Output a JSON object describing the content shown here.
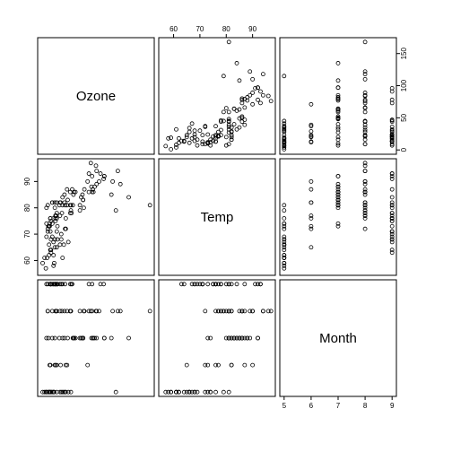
{
  "chart_data": {
    "type": "scatter",
    "plot_kind": "pairs scatterplot matrix",
    "variables": [
      "Ozone",
      "Temp",
      "Month"
    ],
    "axes": {
      "Ozone": {
        "range": [
          0,
          168
        ],
        "ticks": [
          0,
          50,
          100,
          150
        ]
      },
      "Temp": {
        "range": [
          56,
          97
        ],
        "ticks": [
          60,
          70,
          80,
          90
        ]
      },
      "Month": {
        "range": [
          5,
          9
        ],
        "ticks": [
          5,
          6,
          7,
          8,
          9
        ]
      }
    },
    "axis_placement": {
      "Ozone": "right",
      "Temp": [
        "top",
        "left"
      ],
      "Month": "bottom"
    },
    "point_style": "open circle",
    "grid": false,
    "observations": [
      {
        "Ozone": 41,
        "Temp": 67,
        "Month": 5
      },
      {
        "Ozone": 36,
        "Temp": 72,
        "Month": 5
      },
      {
        "Ozone": 12,
        "Temp": 74,
        "Month": 5
      },
      {
        "Ozone": 18,
        "Temp": 62,
        "Month": 5
      },
      {
        "Ozone": 28,
        "Temp": 66,
        "Month": 5
      },
      {
        "Ozone": 23,
        "Temp": 65,
        "Month": 5
      },
      {
        "Ozone": 19,
        "Temp": 59,
        "Month": 5
      },
      {
        "Ozone": 8,
        "Temp": 61,
        "Month": 5
      },
      {
        "Ozone": 7,
        "Temp": 74,
        "Month": 5
      },
      {
        "Ozone": 16,
        "Temp": 69,
        "Month": 5
      },
      {
        "Ozone": 11,
        "Temp": 66,
        "Month": 5
      },
      {
        "Ozone": 14,
        "Temp": 68,
        "Month": 5
      },
      {
        "Ozone": 18,
        "Temp": 58,
        "Month": 5
      },
      {
        "Ozone": 14,
        "Temp": 64,
        "Month": 5
      },
      {
        "Ozone": 34,
        "Temp": 66,
        "Month": 5
      },
      {
        "Ozone": 6,
        "Temp": 57,
        "Month": 5
      },
      {
        "Ozone": 30,
        "Temp": 68,
        "Month": 5
      },
      {
        "Ozone": 11,
        "Temp": 62,
        "Month": 5
      },
      {
        "Ozone": 1,
        "Temp": 59,
        "Month": 5
      },
      {
        "Ozone": 11,
        "Temp": 73,
        "Month": 5
      },
      {
        "Ozone": 4,
        "Temp": 61,
        "Month": 5
      },
      {
        "Ozone": 32,
        "Temp": 61,
        "Month": 5
      },
      {
        "Ozone": 45,
        "Temp": 81,
        "Month": 5
      },
      {
        "Ozone": 115,
        "Temp": 79,
        "Month": 5
      },
      {
        "Ozone": 37,
        "Temp": 76,
        "Month": 5
      },
      {
        "Ozone": 29,
        "Temp": 82,
        "Month": 6
      },
      {
        "Ozone": 71,
        "Temp": 90,
        "Month": 6
      },
      {
        "Ozone": 39,
        "Temp": 87,
        "Month": 6
      },
      {
        "Ozone": 23,
        "Temp": 82,
        "Month": 6
      },
      {
        "Ozone": 21,
        "Temp": 77,
        "Month": 6
      },
      {
        "Ozone": 37,
        "Temp": 72,
        "Month": 6
      },
      {
        "Ozone": 20,
        "Temp": 65,
        "Month": 6
      },
      {
        "Ozone": 12,
        "Temp": 73,
        "Month": 6
      },
      {
        "Ozone": 13,
        "Temp": 76,
        "Month": 6
      },
      {
        "Ozone": 135,
        "Temp": 84,
        "Month": 7
      },
      {
        "Ozone": 49,
        "Temp": 85,
        "Month": 7
      },
      {
        "Ozone": 32,
        "Temp": 81,
        "Month": 7
      },
      {
        "Ozone": 64,
        "Temp": 83,
        "Month": 7
      },
      {
        "Ozone": 40,
        "Temp": 83,
        "Month": 7
      },
      {
        "Ozone": 77,
        "Temp": 88,
        "Month": 7
      },
      {
        "Ozone": 97,
        "Temp": 92,
        "Month": 7
      },
      {
        "Ozone": 97,
        "Temp": 92,
        "Month": 7
      },
      {
        "Ozone": 85,
        "Temp": 89,
        "Month": 7
      },
      {
        "Ozone": 10,
        "Temp": 73,
        "Month": 7
      },
      {
        "Ozone": 27,
        "Temp": 81,
        "Month": 7
      },
      {
        "Ozone": 7,
        "Temp": 80,
        "Month": 7
      },
      {
        "Ozone": 48,
        "Temp": 81,
        "Month": 7
      },
      {
        "Ozone": 35,
        "Temp": 82,
        "Month": 7
      },
      {
        "Ozone": 61,
        "Temp": 84,
        "Month": 7
      },
      {
        "Ozone": 79,
        "Temp": 87,
        "Month": 7
      },
      {
        "Ozone": 63,
        "Temp": 85,
        "Month": 7
      },
      {
        "Ozone": 16,
        "Temp": 74,
        "Month": 7
      },
      {
        "Ozone": 80,
        "Temp": 86,
        "Month": 7
      },
      {
        "Ozone": 108,
        "Temp": 85,
        "Month": 7
      },
      {
        "Ozone": 20,
        "Temp": 82,
        "Month": 7
      },
      {
        "Ozone": 52,
        "Temp": 86,
        "Month": 7
      },
      {
        "Ozone": 82,
        "Temp": 88,
        "Month": 7
      },
      {
        "Ozone": 50,
        "Temp": 86,
        "Month": 7
      },
      {
        "Ozone": 64,
        "Temp": 83,
        "Month": 7
      },
      {
        "Ozone": 59,
        "Temp": 81,
        "Month": 7
      },
      {
        "Ozone": 39,
        "Temp": 81,
        "Month": 8
      },
      {
        "Ozone": 9,
        "Temp": 81,
        "Month": 8
      },
      {
        "Ozone": 16,
        "Temp": 82,
        "Month": 8
      },
      {
        "Ozone": 78,
        "Temp": 86,
        "Month": 8
      },
      {
        "Ozone": 35,
        "Temp": 85,
        "Month": 8
      },
      {
        "Ozone": 66,
        "Temp": 87,
        "Month": 8
      },
      {
        "Ozone": 122,
        "Temp": 89,
        "Month": 8
      },
      {
        "Ozone": 89,
        "Temp": 90,
        "Month": 8
      },
      {
        "Ozone": 110,
        "Temp": 90,
        "Month": 8
      },
      {
        "Ozone": 44,
        "Temp": 86,
        "Month": 8
      },
      {
        "Ozone": 28,
        "Temp": 82,
        "Month": 8
      },
      {
        "Ozone": 65,
        "Temp": 80,
        "Month": 8
      },
      {
        "Ozone": 22,
        "Temp": 77,
        "Month": 8
      },
      {
        "Ozone": 59,
        "Temp": 79,
        "Month": 8
      },
      {
        "Ozone": 23,
        "Temp": 76,
        "Month": 8
      },
      {
        "Ozone": 31,
        "Temp": 78,
        "Month": 8
      },
      {
        "Ozone": 44,
        "Temp": 78,
        "Month": 8
      },
      {
        "Ozone": 21,
        "Temp": 77,
        "Month": 8
      },
      {
        "Ozone": 9,
        "Temp": 72,
        "Month": 8
      },
      {
        "Ozone": 45,
        "Temp": 79,
        "Month": 8
      },
      {
        "Ozone": 168,
        "Temp": 81,
        "Month": 8
      },
      {
        "Ozone": 73,
        "Temp": 86,
        "Month": 8
      },
      {
        "Ozone": 76,
        "Temp": 97,
        "Month": 8
      },
      {
        "Ozone": 118,
        "Temp": 94,
        "Month": 8
      },
      {
        "Ozone": 84,
        "Temp": 96,
        "Month": 8
      },
      {
        "Ozone": 85,
        "Temp": 94,
        "Month": 8
      },
      {
        "Ozone": 96,
        "Temp": 91,
        "Month": 9
      },
      {
        "Ozone": 78,
        "Temp": 92,
        "Month": 9
      },
      {
        "Ozone": 73,
        "Temp": 93,
        "Month": 9
      },
      {
        "Ozone": 91,
        "Temp": 93,
        "Month": 9
      },
      {
        "Ozone": 47,
        "Temp": 87,
        "Month": 9
      },
      {
        "Ozone": 32,
        "Temp": 84,
        "Month": 9
      },
      {
        "Ozone": 20,
        "Temp": 80,
        "Month": 9
      },
      {
        "Ozone": 23,
        "Temp": 78,
        "Month": 9
      },
      {
        "Ozone": 21,
        "Temp": 75,
        "Month": 9
      },
      {
        "Ozone": 24,
        "Temp": 73,
        "Month": 9
      },
      {
        "Ozone": 44,
        "Temp": 81,
        "Month": 9
      },
      {
        "Ozone": 21,
        "Temp": 76,
        "Month": 9
      },
      {
        "Ozone": 28,
        "Temp": 77,
        "Month": 9
      },
      {
        "Ozone": 9,
        "Temp": 71,
        "Month": 9
      },
      {
        "Ozone": 13,
        "Temp": 71,
        "Month": 9
      },
      {
        "Ozone": 46,
        "Temp": 78,
        "Month": 9
      },
      {
        "Ozone": 18,
        "Temp": 67,
        "Month": 9
      },
      {
        "Ozone": 13,
        "Temp": 76,
        "Month": 9
      },
      {
        "Ozone": 24,
        "Temp": 68,
        "Month": 9
      },
      {
        "Ozone": 16,
        "Temp": 82,
        "Month": 9
      },
      {
        "Ozone": 13,
        "Temp": 64,
        "Month": 9
      },
      {
        "Ozone": 23,
        "Temp": 71,
        "Month": 9
      },
      {
        "Ozone": 36,
        "Temp": 81,
        "Month": 9
      },
      {
        "Ozone": 7,
        "Temp": 69,
        "Month": 9
      },
      {
        "Ozone": 14,
        "Temp": 63,
        "Month": 9
      },
      {
        "Ozone": 30,
        "Temp": 70,
        "Month": 9
      },
      {
        "Ozone": 14,
        "Temp": 75,
        "Month": 9
      },
      {
        "Ozone": 18,
        "Temp": 76,
        "Month": 9
      },
      {
        "Ozone": 20,
        "Temp": 68,
        "Month": 9
      }
    ]
  }
}
